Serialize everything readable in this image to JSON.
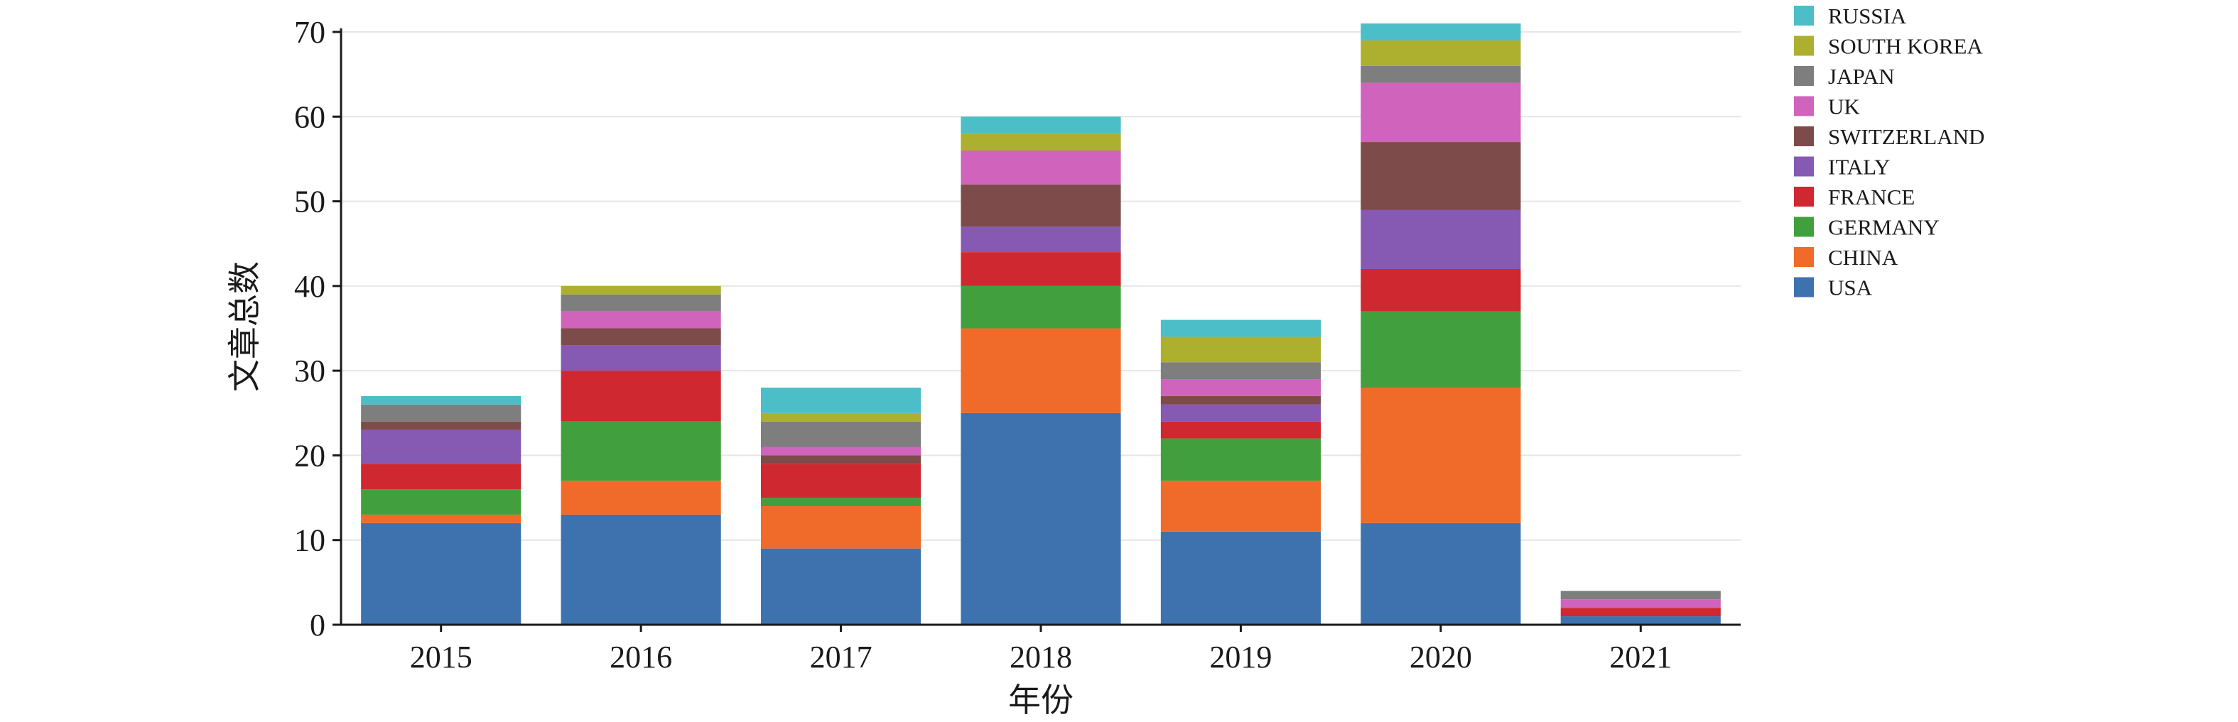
{
  "chart_data": {
    "type": "bar",
    "stacked": true,
    "categories": [
      "2015",
      "2016",
      "2017",
      "2018",
      "2019",
      "2020",
      "2021"
    ],
    "xlabel": "年份",
    "ylabel": "文章总数",
    "ylim": [
      0,
      70
    ],
    "yticks": [
      0,
      10,
      20,
      30,
      40,
      50,
      60,
      70
    ],
    "grid": true,
    "legend_position": "right",
    "series": [
      {
        "name": "USA",
        "color": "#3d72ae",
        "values": [
          12,
          13,
          9,
          25,
          11,
          12,
          1
        ]
      },
      {
        "name": "CHINA",
        "color": "#f06b2a",
        "values": [
          1,
          4,
          5,
          10,
          6,
          16,
          0
        ]
      },
      {
        "name": "GERMANY",
        "color": "#41a03d",
        "values": [
          3,
          7,
          1,
          5,
          5,
          9,
          0
        ]
      },
      {
        "name": "FRANCE",
        "color": "#cf2830",
        "values": [
          3,
          6,
          4,
          4,
          2,
          5,
          1
        ]
      },
      {
        "name": "ITALY",
        "color": "#8659b3",
        "values": [
          4,
          3,
          0,
          3,
          2,
          7,
          0
        ]
      },
      {
        "name": "SWITZERLAND",
        "color": "#7d4c4a",
        "values": [
          1,
          2,
          1,
          5,
          1,
          8,
          0
        ]
      },
      {
        "name": "UK",
        "color": "#d063bb",
        "values": [
          0,
          2,
          1,
          4,
          2,
          7,
          1
        ]
      },
      {
        "name": "JAPAN",
        "color": "#7e7e7e",
        "values": [
          2,
          2,
          3,
          0,
          2,
          2,
          1
        ]
      },
      {
        "name": "SOUTH KOREA",
        "color": "#adb02e",
        "values": [
          0,
          1,
          1,
          2,
          3,
          3,
          0
        ]
      },
      {
        "name": "RUSSIA",
        "color": "#4cbec8",
        "values": [
          1,
          0,
          3,
          2,
          2,
          2,
          0
        ]
      }
    ]
  }
}
